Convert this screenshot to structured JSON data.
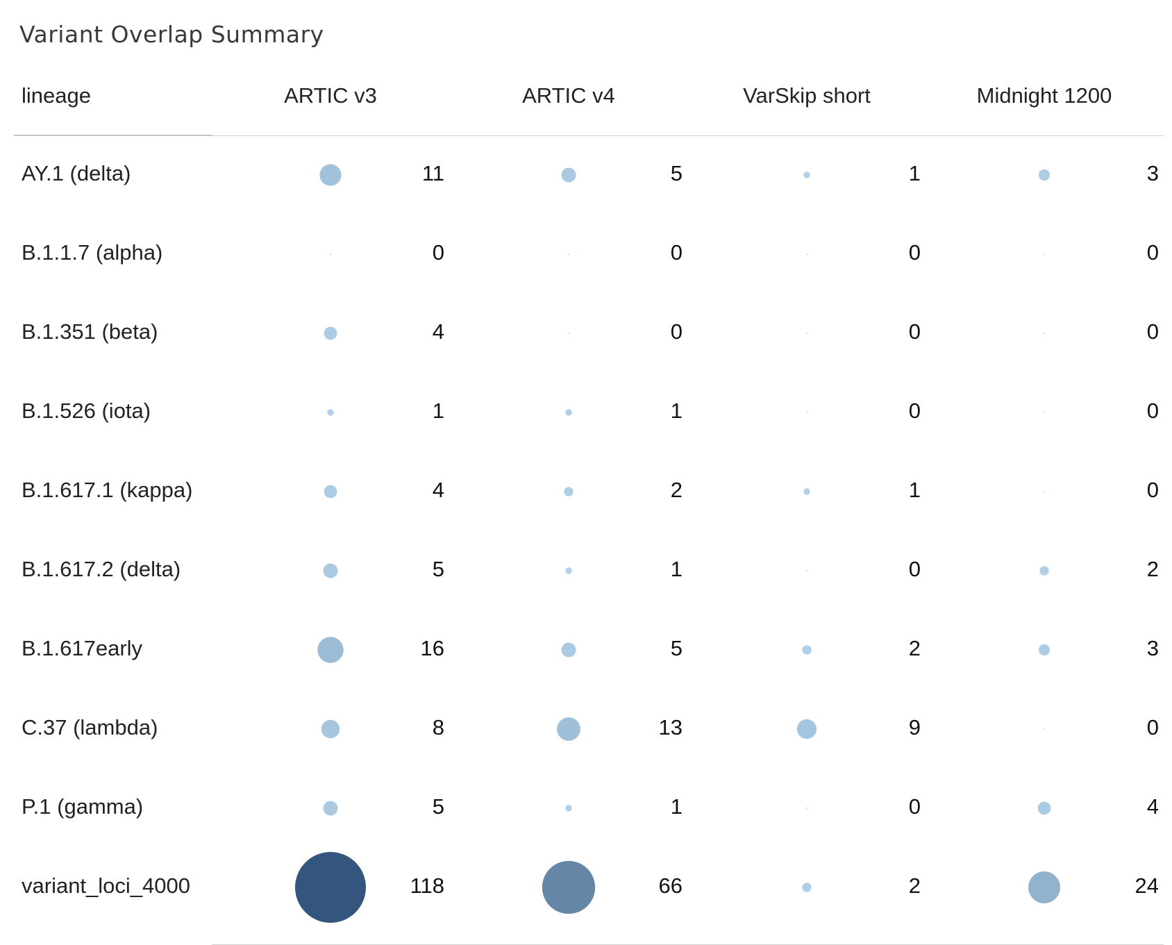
{
  "title": "Variant  Overlap Summary",
  "chart_data": {
    "type": "table",
    "row_header": "lineage",
    "columns": [
      "ARTIC v3",
      "ARTIC v4",
      "VarSkip short",
      "Midnight 1200"
    ],
    "rows": [
      {
        "lineage": "AY.1 (delta)",
        "values": [
          11,
          5,
          1,
          3
        ]
      },
      {
        "lineage": "B.1.1.7 (alpha)",
        "values": [
          0,
          0,
          0,
          0
        ]
      },
      {
        "lineage": "B.1.351 (beta)",
        "values": [
          4,
          0,
          0,
          0
        ]
      },
      {
        "lineage": "B.1.526 (iota)",
        "values": [
          1,
          1,
          0,
          0
        ]
      },
      {
        "lineage": "B.1.617.1 (kappa)",
        "values": [
          4,
          2,
          1,
          0
        ]
      },
      {
        "lineage": "B.1.617.2 (delta)",
        "values": [
          5,
          1,
          0,
          2
        ]
      },
      {
        "lineage": "B.1.617early",
        "values": [
          16,
          5,
          2,
          3
        ]
      },
      {
        "lineage": "C.37 (lambda)",
        "values": [
          8,
          13,
          9,
          0
        ]
      },
      {
        "lineage": "P.1 (gamma)",
        "values": [
          5,
          1,
          0,
          4
        ]
      },
      {
        "lineage": "variant_loci_4000",
        "values": [
          118,
          66,
          2,
          24
        ]
      }
    ],
    "encoding": "bubble area and color intensity proportional to value",
    "colors": {
      "low": "#b3d3ea",
      "high": "#34557d",
      "zero": "#cfe0ee"
    }
  }
}
